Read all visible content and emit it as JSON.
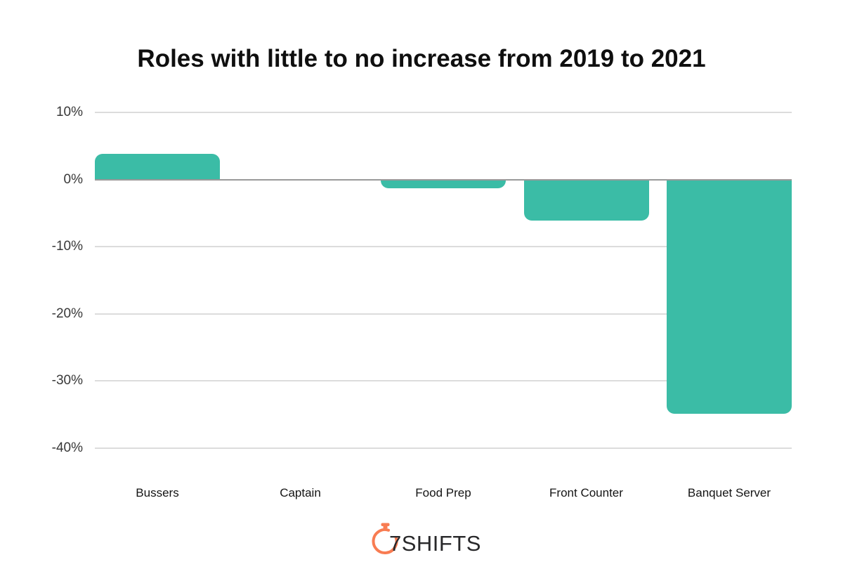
{
  "chart_data": {
    "type": "bar",
    "title": "Roles with little to no increase from 2019 to 2021",
    "categories": [
      "Bussers",
      "Captain",
      "Food Prep",
      "Front Counter",
      "Banquet Server"
    ],
    "values": [
      3.8,
      0,
      -1.3,
      -6.1,
      -34.9
    ],
    "xlabel": "",
    "ylabel": "",
    "ylim": [
      -40,
      10
    ],
    "y_ticks": [
      10,
      0,
      -10,
      -20,
      -30,
      -40
    ],
    "y_tick_labels": [
      "10%",
      "0%",
      "-10%",
      "-20%",
      "-30%",
      "-40%"
    ],
    "grid": true,
    "legend": false,
    "bar_shape": "rounded-outer-end"
  },
  "style": {
    "background": "#ffffff",
    "bar_color": "#3bbca6",
    "gridline_color": "#dcdcdc",
    "zero_line_color": "#999999",
    "title_color": "#0f0f0f",
    "y_tick_color": "#383838",
    "x_label_color": "#141414",
    "logo_orange": "#f87c52",
    "logo_text_color": "#28282a"
  },
  "logo": {
    "text": "7SHIFTS",
    "icon": "stopwatch-icon"
  }
}
